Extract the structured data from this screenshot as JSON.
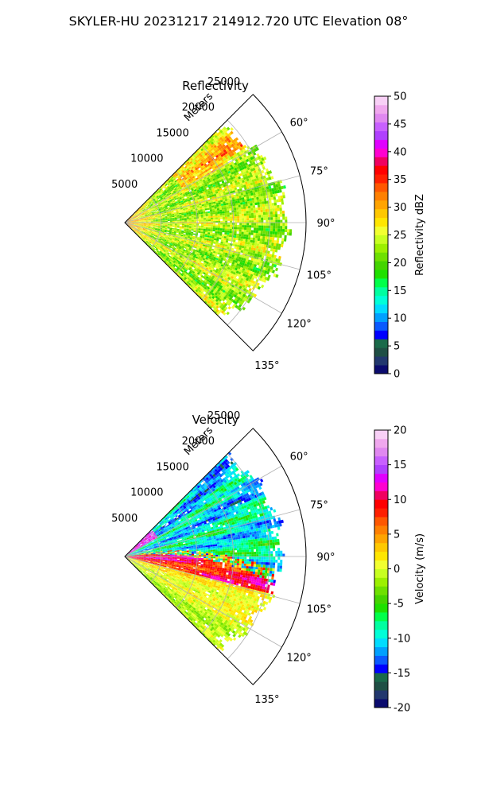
{
  "figure": {
    "title": "SKYLER-HU  20231217  214912.720 UTC Elevation 08°"
  },
  "chart_data": [
    {
      "type": "heatmap",
      "title": "Reflectivity",
      "projection": "polar-sector",
      "azimuth_range_deg": [
        45,
        135
      ],
      "radial_range_m": [
        0,
        25000
      ],
      "radial_label": "Meters",
      "radial_ticks": [
        "5000",
        "10000",
        "15000",
        "20000",
        "25000"
      ],
      "angle_ticks": [
        "60°",
        "75°",
        "90°",
        "105°",
        "120°",
        "135°"
      ],
      "grid": true,
      "colorbar": {
        "label": "Reflectivity dBZ",
        "min": 0,
        "max": 50,
        "ticks": [
          "0",
          "5",
          "10",
          "15",
          "20",
          "25",
          "30",
          "35",
          "40",
          "45",
          "50"
        ],
        "colors": [
          "#0b0b6e",
          "#22386e",
          "#1f4f45",
          "#1a6a4a",
          "#0000ff",
          "#0a5aff",
          "#00a0ff",
          "#00dcff",
          "#00ffd8",
          "#00ffa0",
          "#00ff4a",
          "#1ee000",
          "#44d400",
          "#6ee000",
          "#9cf000",
          "#c8ff20",
          "#f2ff30",
          "#ffe600",
          "#ffc800",
          "#ffa400",
          "#ff8000",
          "#ff5800",
          "#ff2000",
          "#ff0000",
          "#f00060",
          "#ff00d0",
          "#e000ff",
          "#b040ff",
          "#c860ff",
          "#e088f0",
          "#f0a8ee",
          "#f8d0f6"
        ]
      },
      "field": "reflectivity",
      "value_summary": "mostly 18–30 dBZ, bands up to ~38 dBZ along 45–60° near 10000–20000 m"
    },
    {
      "type": "heatmap",
      "title": "Velocity",
      "projection": "polar-sector",
      "azimuth_range_deg": [
        45,
        135
      ],
      "radial_range_m": [
        0,
        25000
      ],
      "radial_label": "Meters",
      "radial_ticks": [
        "5000",
        "10000",
        "15000",
        "20000",
        "25000"
      ],
      "angle_ticks": [
        "60°",
        "75°",
        "90°",
        "105°",
        "120°",
        "135°"
      ],
      "grid": true,
      "colorbar": {
        "label": "Velocity (m/s)",
        "min": -20,
        "max": 20,
        "ticks": [
          "-20",
          "-15",
          "-10",
          "-5",
          "0",
          "5",
          "10",
          "15",
          "20"
        ],
        "colors": [
          "#0b0b6e",
          "#22386e",
          "#1f4f45",
          "#1a6a4a",
          "#0000ff",
          "#0a5aff",
          "#00a0ff",
          "#00dcff",
          "#00ffd8",
          "#00ffa0",
          "#00ff4a",
          "#1ee000",
          "#44d400",
          "#6ee000",
          "#9cf000",
          "#c8ff20",
          "#f2ff30",
          "#ffe600",
          "#ffc800",
          "#ffa400",
          "#ff8000",
          "#ff5800",
          "#ff2000",
          "#ff0000",
          "#f00060",
          "#ff00d0",
          "#e000ff",
          "#b040ff",
          "#c860ff",
          "#e088f0",
          "#f0a8ee",
          "#f8d0f6"
        ]
      },
      "field": "velocity",
      "value_summary": "-15 to -5 m/s (cyan/green) at 45–85°, shear line near 80–95°, +5 to +15 m/s (red/magenta) at 90–105°, 0 to +3 m/s (yellow) at 105–135°"
    }
  ]
}
